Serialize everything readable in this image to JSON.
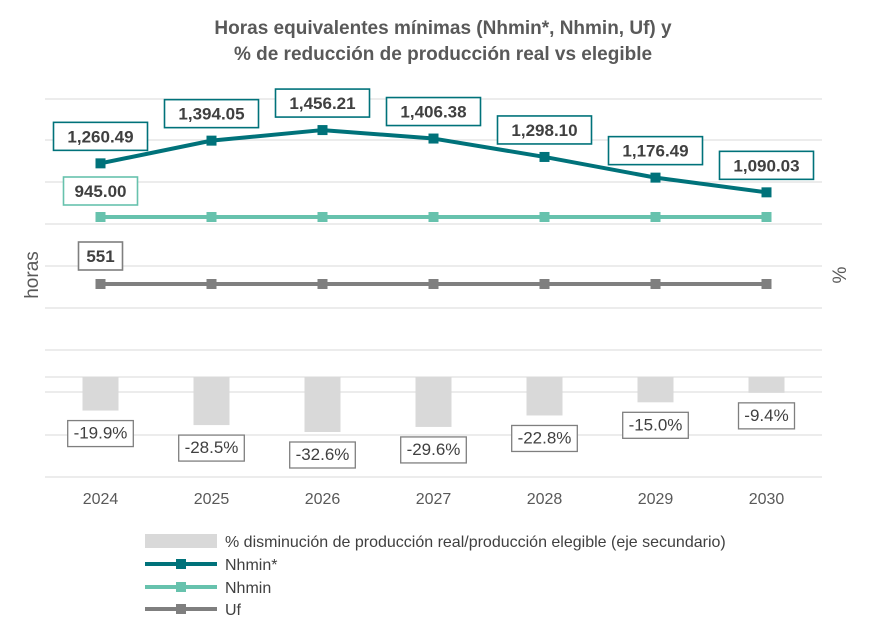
{
  "chart_data": {
    "type": "line",
    "title_lines": [
      "Horas equivalentes mínimas (Nhmin*, Nhmin, Uf) y",
      "% de reducción de producción real vs elegible"
    ],
    "ylabel": "horas",
    "y2label": "%",
    "categories": [
      "2024",
      "2025",
      "2026",
      "2027",
      "2028",
      "2029",
      "2030"
    ],
    "series": [
      {
        "name": "% disminución de producción real/producción elegible (eje secundario)",
        "kind": "bar",
        "axis": "secondary",
        "color": "#d9d9d9",
        "values": [
          -19.9,
          -28.5,
          -32.6,
          -29.6,
          -22.8,
          -15.0,
          -9.4
        ],
        "labels": [
          "-19.9%",
          "-28.5%",
          "-32.6%",
          "-29.6%",
          "-22.8%",
          "-15.0%",
          "-9.4%"
        ]
      },
      {
        "name": "Nhmin*",
        "kind": "line",
        "axis": "primary",
        "color": "#00727a",
        "values": [
          1260.49,
          1394.05,
          1456.21,
          1406.38,
          1298.1,
          1176.49,
          1090.03
        ],
        "labels": [
          "1,260.49",
          "1,394.05",
          "1,456.21",
          "1,406.38",
          "1,298.10",
          "1,176.49",
          "1,090.03"
        ]
      },
      {
        "name": "Nhmin",
        "kind": "line",
        "axis": "primary",
        "color": "#67c2ad",
        "values": [
          945,
          945,
          945,
          945,
          945,
          945,
          945
        ],
        "labels": [
          "945.00"
        ]
      },
      {
        "name": "Uf",
        "kind": "line",
        "axis": "primary",
        "color": "#7f7f7f",
        "values": [
          551,
          551,
          551,
          551,
          551,
          551,
          551
        ],
        "labels": [
          "551"
        ]
      }
    ],
    "primary_axis_ticks_shown": false,
    "secondary_axis_ticks_shown": false,
    "grid": true,
    "legend_position": "bottom"
  }
}
